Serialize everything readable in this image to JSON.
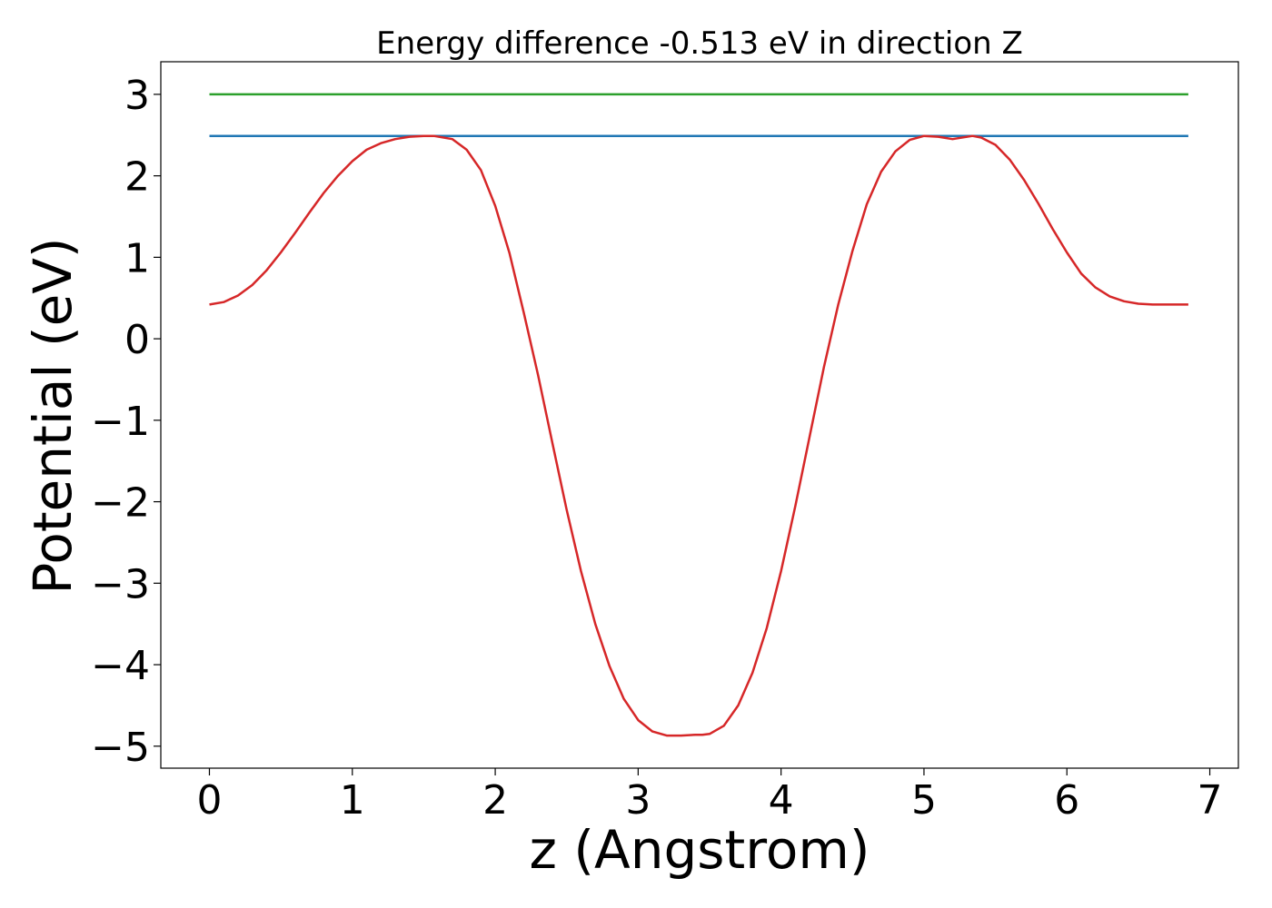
{
  "chart_data": {
    "type": "line",
    "title": "Energy difference -0.513 eV in direction Z",
    "xlabel": "z (Angstrom)",
    "ylabel": "Potential (eV)",
    "xlim": [
      -0.34,
      7.2
    ],
    "ylim": [
      -5.27,
      3.4
    ],
    "xticks": [
      0,
      1,
      2,
      3,
      4,
      5,
      6,
      7
    ],
    "xtick_labels": [
      "0",
      "1",
      "2",
      "3",
      "4",
      "5",
      "6",
      "7"
    ],
    "yticks": [
      3,
      2,
      1,
      0,
      -1,
      -2,
      -3,
      -4,
      -5
    ],
    "ytick_labels": [
      "3",
      "2",
      "1",
      "0",
      "−1",
      "−2",
      "−3",
      "−4",
      "−5"
    ],
    "grid": false,
    "series": [
      {
        "color": "#2ca02c",
        "x": [
          0,
          6.85
        ],
        "y": [
          3.0,
          3.0
        ]
      },
      {
        "color": "#1f77b4",
        "x": [
          0,
          6.85
        ],
        "y": [
          2.49,
          2.49
        ]
      },
      {
        "color": "#d62728",
        "x": [
          0.0,
          0.1,
          0.2,
          0.3,
          0.4,
          0.5,
          0.6,
          0.7,
          0.8,
          0.9,
          1.0,
          1.1,
          1.2,
          1.3,
          1.4,
          1.5,
          1.57,
          1.7,
          1.8,
          1.9,
          2.0,
          2.1,
          2.2,
          2.3,
          2.4,
          2.5,
          2.6,
          2.7,
          2.8,
          2.9,
          3.0,
          3.1,
          3.2,
          3.3,
          3.4,
          3.45,
          3.5,
          3.6,
          3.7,
          3.8,
          3.9,
          4.0,
          4.1,
          4.2,
          4.3,
          4.4,
          4.5,
          4.6,
          4.7,
          4.8,
          4.9,
          5.0,
          5.1,
          5.2,
          5.34,
          5.4,
          5.5,
          5.6,
          5.7,
          5.8,
          5.9,
          6.0,
          6.1,
          6.2,
          6.3,
          6.4,
          6.5,
          6.6,
          6.7,
          6.85
        ],
        "y": [
          0.42,
          0.45,
          0.53,
          0.66,
          0.84,
          1.06,
          1.3,
          1.55,
          1.79,
          2.0,
          2.18,
          2.32,
          2.4,
          2.45,
          2.48,
          2.49,
          2.49,
          2.45,
          2.32,
          2.07,
          1.63,
          1.05,
          0.32,
          -0.45,
          -1.28,
          -2.1,
          -2.85,
          -3.5,
          -4.02,
          -4.42,
          -4.68,
          -4.82,
          -4.87,
          -4.87,
          -4.86,
          -4.86,
          -4.85,
          -4.75,
          -4.5,
          -4.1,
          -3.55,
          -2.85,
          -2.05,
          -1.2,
          -0.35,
          0.42,
          1.08,
          1.65,
          2.05,
          2.3,
          2.44,
          2.49,
          2.48,
          2.45,
          2.49,
          2.47,
          2.38,
          2.2,
          1.95,
          1.66,
          1.35,
          1.06,
          0.8,
          0.63,
          0.52,
          0.46,
          0.43,
          0.42,
          0.42,
          0.42
        ]
      }
    ]
  }
}
